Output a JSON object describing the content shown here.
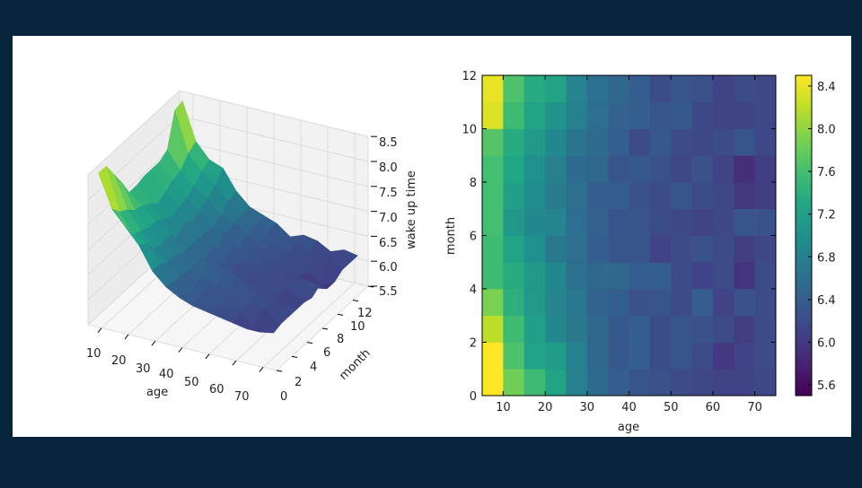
{
  "chart_data": [
    {
      "type": "surface",
      "xlabel": "age",
      "ylabel": "month",
      "zlabel": "wake up time",
      "x_ticks": [
        "10",
        "20",
        "30",
        "40",
        "50",
        "60",
        "70"
      ],
      "y_ticks": [
        "0",
        "2",
        "4",
        "6",
        "8",
        "10",
        "12"
      ],
      "z_ticks": [
        "5.5",
        "6.0",
        "6.5",
        "7.0",
        "7.5",
        "8.0",
        "8.5"
      ],
      "zlim": [
        5.5,
        8.5
      ],
      "colormap": "viridis",
      "note": "3D surface of the same age×month wake-up-time grid shown in the heatmap"
    },
    {
      "type": "heatmap",
      "xlabel": "age",
      "ylabel": "month",
      "x_ticks": [
        "10",
        "20",
        "30",
        "40",
        "50",
        "60",
        "70"
      ],
      "y_ticks": [
        "0",
        "2",
        "4",
        "6",
        "8",
        "10",
        "12"
      ],
      "xlim": [
        5,
        75
      ],
      "ylim": [
        0,
        12
      ],
      "x_bins": [
        5,
        10,
        15,
        20,
        25,
        30,
        35,
        40,
        45,
        50,
        55,
        60,
        65,
        70,
        75
      ],
      "y_bins": [
        0,
        1,
        2,
        3,
        4,
        5,
        6,
        7,
        8,
        9,
        10,
        11,
        12
      ],
      "colorbar_ticks": [
        "5.6",
        "6.0",
        "6.4",
        "6.8",
        "7.2",
        "7.6",
        "8.0",
        "8.4"
      ],
      "clim": [
        5.5,
        8.5
      ],
      "colormap": "viridis",
      "values": [
        [
          8.5,
          7.85,
          7.55,
          7.25,
          6.8,
          6.55,
          6.4,
          6.3,
          6.25,
          6.2,
          6.15,
          6.1,
          6.1,
          6.15
        ],
        [
          8.5,
          7.65,
          7.25,
          7.15,
          6.8,
          6.5,
          6.35,
          6.4,
          6.2,
          6.3,
          6.2,
          6.0,
          6.1,
          6.2
        ],
        [
          8.2,
          7.55,
          7.2,
          6.9,
          6.7,
          6.5,
          6.35,
          6.4,
          6.2,
          6.3,
          6.25,
          6.2,
          6.05,
          6.2
        ],
        [
          7.9,
          7.4,
          7.1,
          6.85,
          6.7,
          6.45,
          6.4,
          6.25,
          6.3,
          6.2,
          6.4,
          6.1,
          6.25,
          6.2
        ],
        [
          7.55,
          7.35,
          7.1,
          6.9,
          6.6,
          6.5,
          6.5,
          6.4,
          6.4,
          6.2,
          6.1,
          6.2,
          5.95,
          6.2
        ],
        [
          7.55,
          7.25,
          7.0,
          6.7,
          6.6,
          6.4,
          6.3,
          6.3,
          6.1,
          6.2,
          6.25,
          6.2,
          6.05,
          6.15
        ],
        [
          7.6,
          7.1,
          6.9,
          6.85,
          6.6,
          6.45,
          6.3,
          6.3,
          6.2,
          6.15,
          6.1,
          6.15,
          6.3,
          6.25
        ],
        [
          7.6,
          7.2,
          6.95,
          6.75,
          6.6,
          6.4,
          6.4,
          6.25,
          6.2,
          6.3,
          6.2,
          6.15,
          6.0,
          6.05
        ],
        [
          7.6,
          7.3,
          7.0,
          6.8,
          6.55,
          6.5,
          6.3,
          6.35,
          6.25,
          6.15,
          6.25,
          6.1,
          5.9,
          6.05
        ],
        [
          7.7,
          7.35,
          7.1,
          6.9,
          6.65,
          6.55,
          6.4,
          6.2,
          6.35,
          6.2,
          6.15,
          6.2,
          6.3,
          6.15
        ],
        [
          8.35,
          7.55,
          7.25,
          7.05,
          6.8,
          6.6,
          6.45,
          6.4,
          6.3,
          6.35,
          6.15,
          6.1,
          6.1,
          6.15
        ],
        [
          8.4,
          7.65,
          7.35,
          7.25,
          6.85,
          6.6,
          6.5,
          6.4,
          6.2,
          6.3,
          6.25,
          6.1,
          6.2,
          6.15
        ]
      ]
    }
  ]
}
